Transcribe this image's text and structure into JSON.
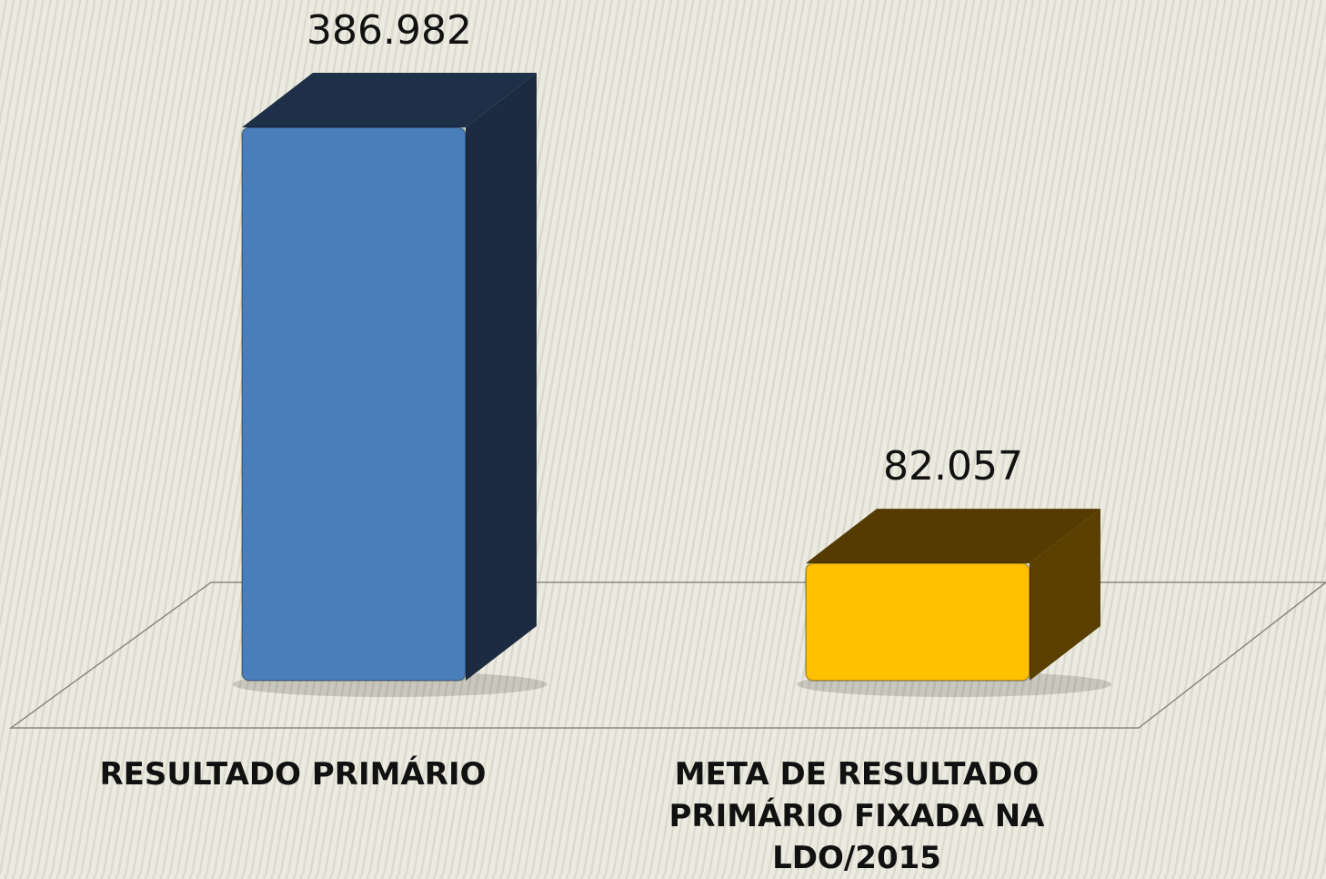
{
  "chart_data": {
    "type": "bar3d",
    "categories": [
      "RESULTADO PRIMÁRIO",
      "META DE RESULTADO PRIMÁRIO FIXADA NA LDO/2015"
    ],
    "values": [
      386.982,
      82.057
    ],
    "colors": [
      {
        "front": "#4a7ebb",
        "side": "#1c2b42",
        "top": "#1e2f48"
      },
      {
        "front": "#ffc000",
        "side": "#5a3f00",
        "top": "#553b00"
      }
    ]
  }
}
